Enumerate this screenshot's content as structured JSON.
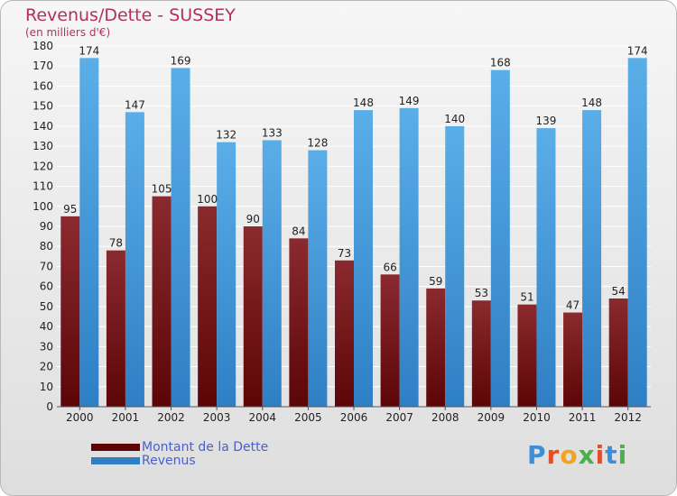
{
  "title": "Revenus/Dette - SUSSEY",
  "subtitle": "(en milliers d'€)",
  "logo_text": "Proxiti",
  "colors": {
    "debt_top": "#8a2a2e",
    "debt_bottom": "#5c0507",
    "revenue_top": "#5aaee8",
    "revenue_bottom": "#2e7fc4",
    "title": "#b3305a",
    "legend_text": "#4a5fcf",
    "grid": "#ffffff",
    "axis_text": "#222222"
  },
  "chart_data": {
    "type": "bar",
    "categories": [
      "2000",
      "2001",
      "2002",
      "2003",
      "2004",
      "2005",
      "2006",
      "2007",
      "2008",
      "2009",
      "2010",
      "2011",
      "2012"
    ],
    "series": [
      {
        "name": "Montant de la Dette",
        "values": [
          95,
          78,
          105,
          100,
          90,
          84,
          73,
          66,
          59,
          53,
          51,
          47,
          54
        ]
      },
      {
        "name": "Revenus",
        "values": [
          174,
          147,
          169,
          132,
          133,
          128,
          148,
          149,
          140,
          168,
          139,
          148,
          174
        ]
      }
    ],
    "ylim": [
      0,
      180
    ],
    "yticks": [
      0,
      10,
      20,
      30,
      40,
      50,
      60,
      70,
      80,
      90,
      100,
      110,
      120,
      130,
      140,
      150,
      160,
      170,
      180
    ],
    "grid": true,
    "legend_position": "bottom-left"
  }
}
